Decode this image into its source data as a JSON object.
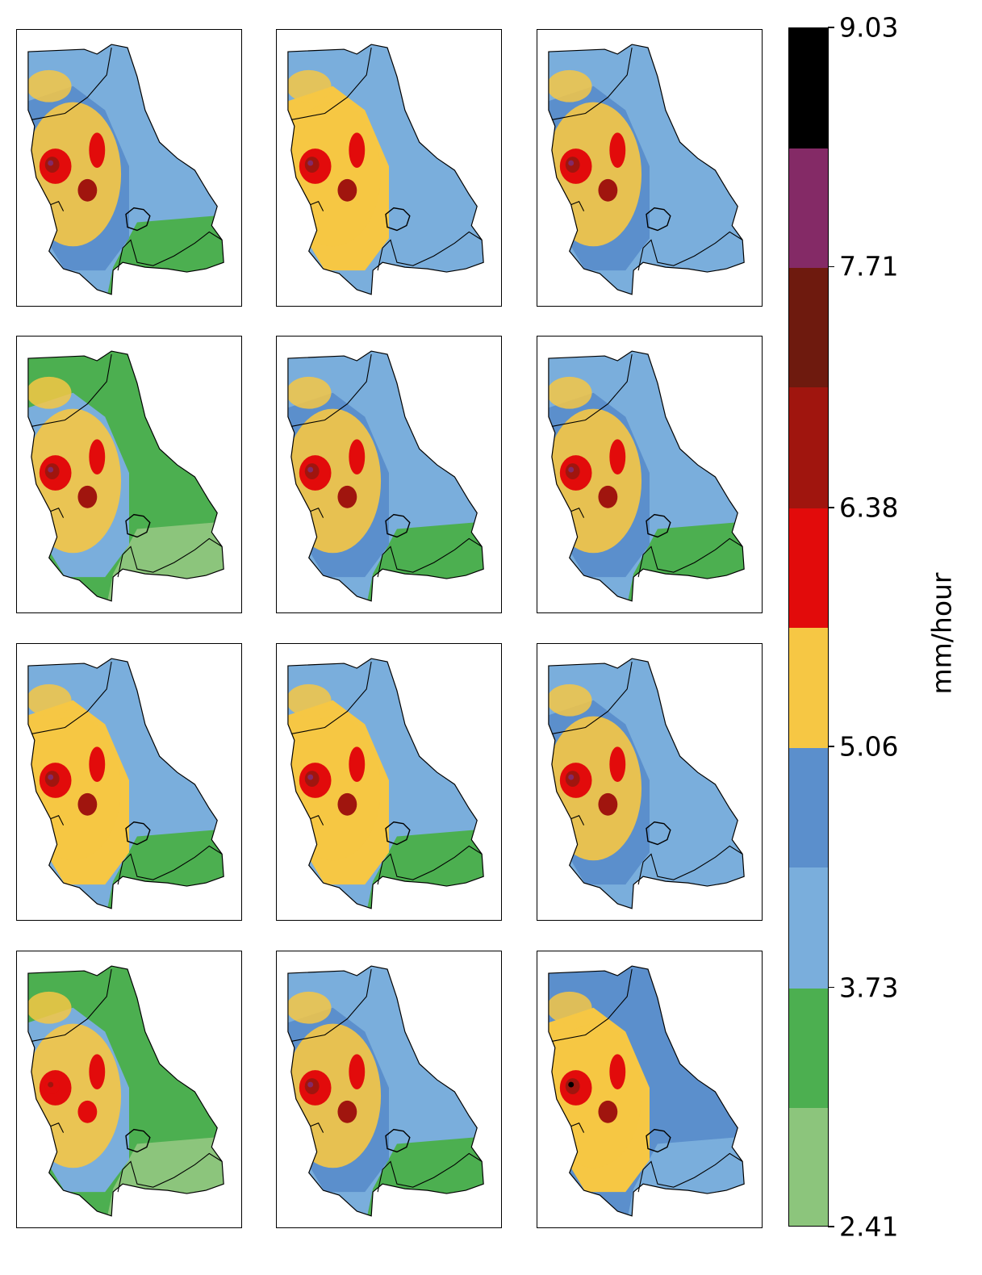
{
  "colorbar": {
    "label": "mm/hour",
    "ticks": [
      "9.03",
      "7.71",
      "6.38",
      "5.06",
      "3.73",
      "2.41"
    ],
    "range": [
      2.41,
      9.03
    ],
    "bins": [
      {
        "from": 2.41,
        "to": 3.07,
        "color": "#8cc57c"
      },
      {
        "from": 3.07,
        "to": 3.73,
        "color": "#4caf50"
      },
      {
        "from": 3.73,
        "to": 4.4,
        "color": "#7aaedc"
      },
      {
        "from": 4.4,
        "to": 5.06,
        "color": "#5b8fcc"
      },
      {
        "from": 5.06,
        "to": 5.72,
        "color": "#f6c744"
      },
      {
        "from": 5.72,
        "to": 6.38,
        "color": "#e20b0b"
      },
      {
        "from": 6.38,
        "to": 7.05,
        "color": "#a0150e"
      },
      {
        "from": 7.05,
        "to": 7.71,
        "color": "#6e1a0e"
      },
      {
        "from": 7.71,
        "to": 8.37,
        "color": "#842a66"
      },
      {
        "from": 8.37,
        "to": 9.03,
        "color": "#000000"
      }
    ]
  },
  "grid": {
    "rows": 4,
    "cols": 3
  },
  "panels": [
    {
      "base": "#7aaedc",
      "south": "#4caf50",
      "west": "#5b8fcc",
      "hot": "mid"
    },
    {
      "base": "#7aaedc",
      "south": "#7aaedc",
      "west": "#f6c744",
      "hot": "high"
    },
    {
      "base": "#7aaedc",
      "south": "#7aaedc",
      "west": "#5b8fcc",
      "hot": "mid"
    },
    {
      "base": "#4caf50",
      "south": "#8cc57c",
      "west": "#7aaedc",
      "hot": "mid"
    },
    {
      "base": "#7aaedc",
      "south": "#4caf50",
      "west": "#5b8fcc",
      "hot": "mid"
    },
    {
      "base": "#7aaedc",
      "south": "#4caf50",
      "west": "#5b8fcc",
      "hot": "mid"
    },
    {
      "base": "#7aaedc",
      "south": "#4caf50",
      "west": "#f6c744",
      "hot": "mid"
    },
    {
      "base": "#7aaedc",
      "south": "#4caf50",
      "west": "#f6c744",
      "hot": "high"
    },
    {
      "base": "#7aaedc",
      "south": "#7aaedc",
      "west": "#5b8fcc",
      "hot": "high"
    },
    {
      "base": "#4caf50",
      "south": "#8cc57c",
      "west": "#7aaedc",
      "hot": "low"
    },
    {
      "base": "#7aaedc",
      "south": "#4caf50",
      "west": "#5b8fcc",
      "hot": "mid"
    },
    {
      "base": "#5b8fcc",
      "south": "#7aaedc",
      "west": "#f6c744",
      "hot": "max"
    }
  ]
}
